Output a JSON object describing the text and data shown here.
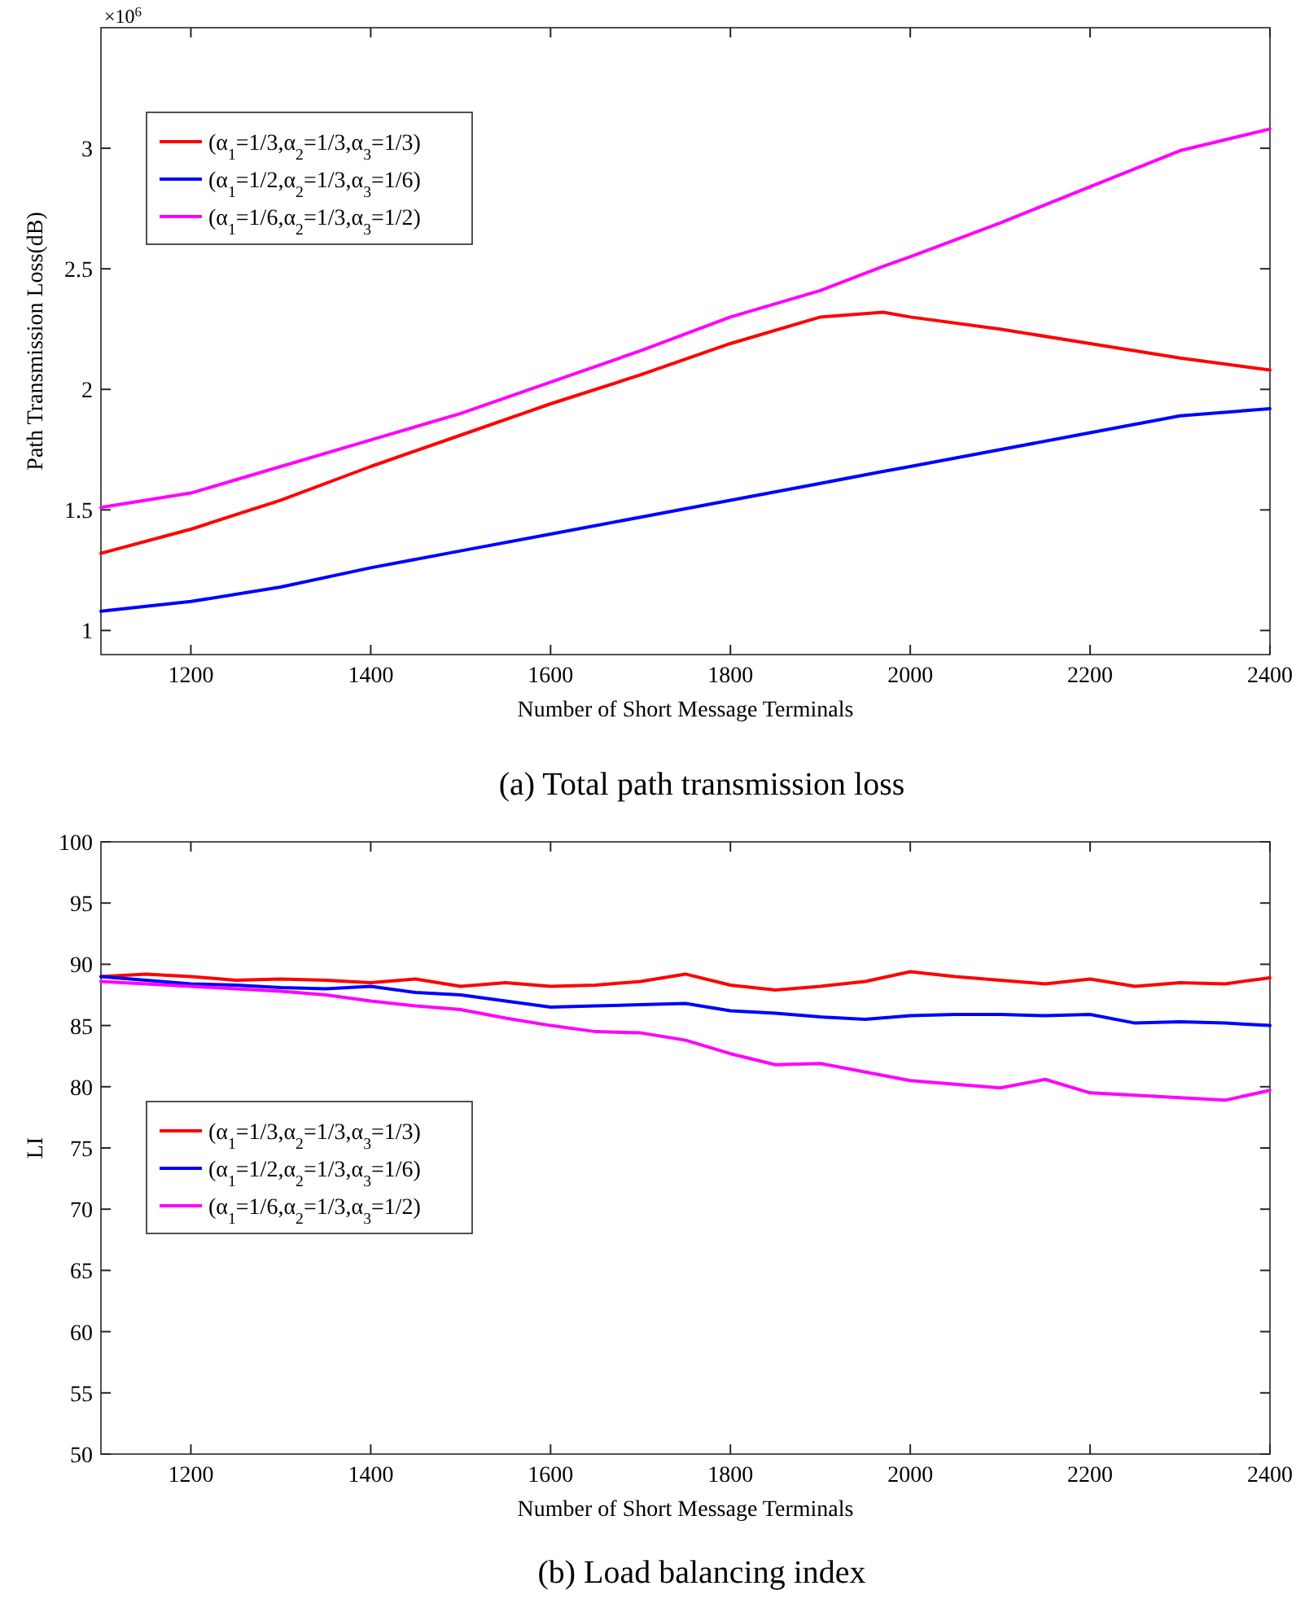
{
  "chart_data": [
    {
      "type": "line",
      "xlabel": "Number of Short Message Terminals",
      "ylabel": "Path Transmission Loss(dB)",
      "annotations": [
        "×10$^{6}$",
        "(a) Total path transmission loss"
      ],
      "xlim": [
        1100,
        2400
      ],
      "xticks": [
        1200,
        1400,
        1600,
        1800,
        2000,
        2200,
        2400
      ],
      "ylim": [
        0.9,
        3.5
      ],
      "yticks": [
        1,
        1.5,
        2,
        2.5,
        3
      ],
      "grid": false,
      "legend": "top left",
      "line_style": "solid",
      "x": [
        1100,
        1200,
        1300,
        1400,
        1500,
        1600,
        1700,
        1800,
        1900,
        1970,
        2000,
        2100,
        2200,
        2300,
        2400
      ],
      "series": [
        {
          "name": "(α$_{1}$=1/3,α$_{2}$=1/3,α$_{3}$=1/3)",
          "color": "#ff0000",
          "values": [
            1.32,
            1.42,
            1.54,
            1.68,
            1.81,
            1.94,
            2.06,
            2.19,
            2.3,
            2.32,
            2.3,
            2.25,
            2.19,
            2.13,
            2.08
          ]
        },
        {
          "name": "(α$_{1}$=1/2,α$_{2}$=1/3,α$_{3}$=1/6)",
          "color": "#0000ff",
          "values": [
            1.08,
            1.12,
            1.18,
            1.26,
            1.33,
            1.4,
            1.47,
            1.54,
            1.61,
            1.66,
            1.68,
            1.75,
            1.82,
            1.89,
            1.92
          ]
        },
        {
          "name": "(α$_{1}$=1/6,α$_{2}$=1/3,α$_{3}$=1/2)",
          "color": "#ff00ff",
          "values": [
            1.51,
            1.57,
            1.68,
            1.79,
            1.9,
            2.03,
            2.16,
            2.3,
            2.41,
            2.51,
            2.55,
            2.69,
            2.84,
            2.99,
            3.08
          ]
        }
      ]
    },
    {
      "type": "line",
      "xlabel": "Number of Short Message Terminals",
      "ylabel": "LI",
      "annotations": [
        "(b) Load balancing index"
      ],
      "xlim": [
        1100,
        2400
      ],
      "xticks": [
        1200,
        1400,
        1600,
        1800,
        2000,
        2200,
        2400
      ],
      "ylim": [
        50,
        100
      ],
      "yticks": [
        50,
        55,
        60,
        65,
        70,
        75,
        80,
        85,
        90,
        95,
        100
      ],
      "grid": false,
      "legend": "left",
      "line_style": "solid",
      "x": [
        1100,
        1150,
        1200,
        1250,
        1300,
        1350,
        1400,
        1450,
        1500,
        1550,
        1600,
        1650,
        1700,
        1750,
        1800,
        1850,
        1900,
        1950,
        2000,
        2050,
        2100,
        2150,
        2200,
        2250,
        2300,
        2350,
        2400
      ],
      "series": [
        {
          "name": "(α$_{1}$=1/3,α$_{2}$=1/3,α$_{3}$=1/3)",
          "color": "#ff0000",
          "values": [
            89,
            89.2,
            89,
            88.7,
            88.8,
            88.7,
            88.5,
            88.8,
            88.2,
            88.5,
            88.2,
            88.3,
            88.6,
            89.2,
            88.3,
            87.9,
            88.2,
            88.6,
            89.4,
            89,
            88.7,
            88.4,
            88.8,
            88.2,
            88.5,
            88.4,
            88.9
          ]
        },
        {
          "name": "(α$_{1}$=1/2,α$_{2}$=1/3,α$_{3}$=1/6)",
          "color": "#0000ff",
          "values": [
            89,
            88.7,
            88.4,
            88.3,
            88.1,
            88,
            88.2,
            87.7,
            87.5,
            87,
            86.5,
            86.6,
            86.7,
            86.8,
            86.2,
            86,
            85.7,
            85.5,
            85.8,
            85.9,
            85.9,
            85.8,
            85.9,
            85.2,
            85.3,
            85.2,
            85
          ]
        },
        {
          "name": "(α$_{1}$=1/6,α$_{2}$=1/3,α$_{3}$=1/2)",
          "color": "#ff00ff",
          "values": [
            88.6,
            88.4,
            88.2,
            88,
            87.8,
            87.5,
            87,
            86.6,
            86.3,
            85.6,
            85,
            84.5,
            84.4,
            83.8,
            82.7,
            81.8,
            81.9,
            81.2,
            80.5,
            80.2,
            79.9,
            80.6,
            79.5,
            79.3,
            79.1,
            78.9,
            79.7
          ]
        }
      ]
    }
  ]
}
